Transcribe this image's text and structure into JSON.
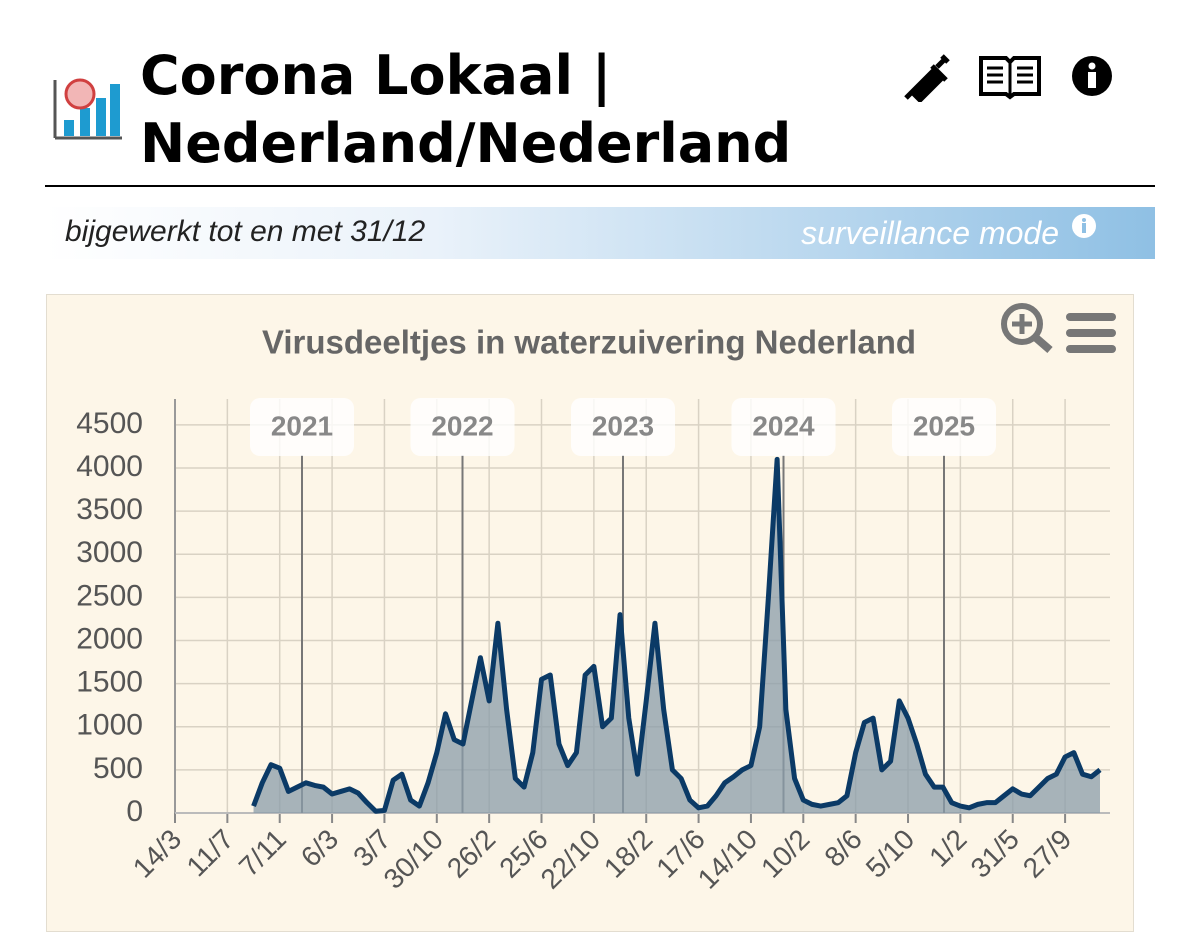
{
  "header": {
    "title": "Corona Lokaal | Nederland/Nederland",
    "updated": "bijgewerkt tot en met 31/12",
    "mode": "surveillance mode"
  },
  "chart_data": {
    "type": "line",
    "title": "Virusdeeltjes in waterzuivering Nederland",
    "categories": [
      "14/3",
      null,
      null,
      null,
      null,
      null,
      "11/7",
      null,
      null,
      null,
      null,
      null,
      "7/11",
      null,
      null,
      null,
      null,
      null,
      "6/3",
      null,
      null,
      null,
      null,
      null,
      "3/7",
      null,
      null,
      null,
      null,
      null,
      "30/10",
      null,
      null,
      null,
      null,
      null,
      "26/2",
      null,
      null,
      null,
      null,
      null,
      "25/6",
      null,
      null,
      null,
      null,
      null,
      "22/10",
      null,
      null,
      null,
      null,
      null,
      "18/2",
      null,
      null,
      null,
      null,
      null,
      "17/6",
      null,
      null,
      null,
      null,
      null,
      "14/10",
      null,
      null,
      null,
      null,
      null,
      "10/2",
      null,
      null,
      null,
      null,
      null,
      "8/6",
      null,
      null,
      null,
      null,
      null,
      "5/10",
      null,
      null,
      null,
      null,
      null,
      "1/2",
      null,
      null,
      null,
      null,
      null,
      "31/5",
      null,
      null,
      null,
      null,
      null,
      "27/9",
      null,
      null,
      null,
      null
    ],
    "series": [
      {
        "name": "Virusdeeltjes",
        "color": "#0b3a66",
        "values": [
          null,
          null,
          null,
          null,
          null,
          null,
          null,
          null,
          null,
          80,
          350,
          560,
          520,
          250,
          300,
          350,
          320,
          300,
          220,
          250,
          280,
          230,
          120,
          20,
          30,
          380,
          450,
          150,
          80,
          350,
          700,
          1150,
          850,
          800,
          1300,
          1800,
          1300,
          2200,
          1200,
          400,
          300,
          700,
          1550,
          1600,
          800,
          550,
          700,
          1600,
          1700,
          1000,
          1100,
          2300,
          1100,
          450,
          1300,
          2200,
          1200,
          500,
          400,
          150,
          60,
          80,
          200,
          350,
          420,
          500,
          550,
          1000,
          2500,
          4100,
          1200,
          400,
          150,
          100,
          80,
          100,
          120,
          200,
          700,
          1050,
          1100,
          500,
          600,
          1300,
          1100,
          800,
          450,
          300,
          300,
          120,
          80,
          60,
          100,
          120,
          120,
          200,
          280,
          220,
          200,
          300,
          400,
          450,
          650,
          700,
          450,
          420,
          500
        ]
      }
    ],
    "year_labels": [
      "2021",
      "2022",
      "2023",
      "2024",
      "2025"
    ],
    "ylim": [
      0,
      4800
    ],
    "yticks": [
      0,
      500,
      1000,
      1500,
      2000,
      2500,
      3000,
      3500,
      4000,
      4500
    ],
    "grid": true
  }
}
